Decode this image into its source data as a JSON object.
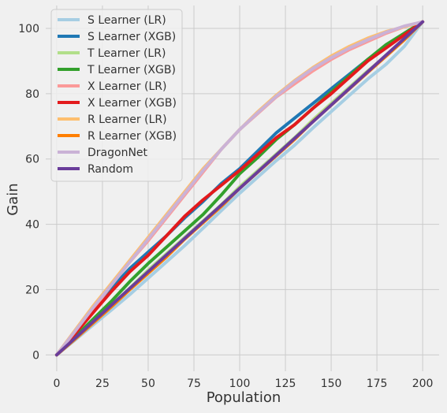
{
  "chart_data": {
    "type": "line",
    "title": "",
    "xlabel": "Population",
    "ylabel": "Gain",
    "xlim": [
      -6,
      209
    ],
    "ylim": [
      -5,
      107
    ],
    "xticks": [
      0,
      25,
      50,
      75,
      100,
      125,
      150,
      175,
      200
    ],
    "yticks": [
      0,
      20,
      40,
      60,
      80,
      100
    ],
    "grid": true,
    "legend_position": "top-left",
    "series": [
      {
        "name": "S Learner (LR)",
        "color": "#a6cee3",
        "x": [
          0,
          10,
          20,
          30,
          40,
          50,
          60,
          70,
          80,
          90,
          100,
          110,
          120,
          130,
          140,
          150,
          160,
          170,
          180,
          190,
          200
        ],
        "y": [
          0,
          4.5,
          9.2,
          13.8,
          18.5,
          23.5,
          28.5,
          33.5,
          38.8,
          44.2,
          49.5,
          54.5,
          59.5,
          64.2,
          69.5,
          74.5,
          79.5,
          84.5,
          89,
          94.5,
          102
        ]
      },
      {
        "name": "S Learner (XGB)",
        "color": "#1f78b4",
        "x": [
          0,
          10,
          20,
          30,
          40,
          50,
          60,
          70,
          80,
          90,
          100,
          110,
          120,
          130,
          140,
          150,
          160,
          170,
          180,
          190,
          200
        ],
        "y": [
          0,
          7,
          14,
          20.5,
          26.5,
          31.5,
          36.5,
          42,
          47,
          52.5,
          57,
          62.5,
          68,
          72.5,
          77,
          81.5,
          86,
          90.5,
          94.5,
          98.5,
          102
        ]
      },
      {
        "name": "T Learner (LR)",
        "color": "#b2df8a",
        "x": [
          0,
          10,
          20,
          30,
          40,
          50,
          60,
          70,
          80,
          90,
          100,
          110,
          120,
          130,
          140,
          150,
          160,
          170,
          180,
          190,
          200
        ],
        "y": [
          0,
          5,
          10,
          15,
          20.5,
          26,
          31,
          36,
          41,
          46,
          51.5,
          56.5,
          61.5,
          66.5,
          72,
          77,
          82,
          87,
          91.5,
          96.5,
          102
        ]
      },
      {
        "name": "T Learner (XGB)",
        "color": "#33a02c",
        "x": [
          0,
          10,
          20,
          30,
          40,
          50,
          60,
          70,
          80,
          90,
          100,
          110,
          120,
          130,
          140,
          150,
          160,
          170,
          180,
          190,
          200
        ],
        "y": [
          0,
          5.5,
          11,
          16.5,
          22.5,
          28,
          33,
          38,
          43,
          49,
          55.5,
          60.5,
          66,
          70.5,
          75.5,
          80.5,
          85.5,
          90.5,
          95,
          98.5,
          102
        ]
      },
      {
        "name": "X Learner (LR)",
        "color": "#fb9a99",
        "x": [
          0,
          10,
          20,
          30,
          40,
          50,
          60,
          70,
          80,
          90,
          100,
          110,
          120,
          130,
          140,
          150,
          160,
          170,
          180,
          190,
          200
        ],
        "y": [
          0,
          7,
          14,
          21.5,
          28.5,
          35,
          42,
          49,
          56,
          63,
          69,
          74,
          79,
          83,
          87,
          90.5,
          93.5,
          96,
          98.5,
          100.5,
          102
        ]
      },
      {
        "name": "X Learner (XGB)",
        "color": "#e31a1c",
        "x": [
          0,
          10,
          20,
          30,
          40,
          50,
          60,
          70,
          80,
          90,
          100,
          110,
          120,
          130,
          140,
          150,
          160,
          170,
          180,
          190,
          200
        ],
        "y": [
          0,
          6.5,
          13,
          19.5,
          25.5,
          30.5,
          36.5,
          42.5,
          47.5,
          52,
          56.5,
          61.5,
          66.5,
          70.5,
          75.5,
          80,
          85,
          90,
          94,
          98,
          102
        ]
      },
      {
        "name": "R Learner (LR)",
        "color": "#fdbf6f",
        "x": [
          0,
          10,
          20,
          30,
          40,
          50,
          60,
          70,
          80,
          90,
          100,
          110,
          120,
          130,
          140,
          150,
          160,
          170,
          180,
          190,
          200
        ],
        "y": [
          0,
          7.5,
          15,
          22,
          29,
          36,
          43,
          50,
          57,
          63,
          69,
          74.5,
          79.5,
          84,
          88,
          91.5,
          94.5,
          97,
          99,
          100.5,
          102
        ]
      },
      {
        "name": "R Learner (XGB)",
        "color": "#ff7f00",
        "x": [
          0,
          10,
          20,
          30,
          40,
          50,
          60,
          70,
          80,
          90,
          100,
          110,
          120,
          130,
          140,
          150,
          160,
          170,
          180,
          190,
          200
        ],
        "y": [
          0,
          4.8,
          9.8,
          14.8,
          20,
          25,
          30,
          35.5,
          40.5,
          45.5,
          51,
          56,
          61,
          66,
          71.5,
          76.5,
          81.5,
          86.5,
          91.5,
          96.5,
          102
        ]
      },
      {
        "name": "DragonNet",
        "color": "#cab2d6",
        "x": [
          0,
          10,
          20,
          30,
          40,
          50,
          60,
          70,
          80,
          90,
          100,
          110,
          120,
          130,
          140,
          150,
          160,
          170,
          180,
          190,
          200
        ],
        "y": [
          0,
          7.2,
          14.5,
          21.5,
          28.5,
          35.5,
          42.5,
          49.5,
          56.5,
          63,
          69,
          74.2,
          79.2,
          83.7,
          87.7,
          91,
          94,
          96.5,
          98.8,
          100.7,
          102
        ]
      },
      {
        "name": "Random",
        "color": "#6a3d9a",
        "x": [
          0,
          200
        ],
        "y": [
          0,
          102
        ]
      }
    ]
  }
}
